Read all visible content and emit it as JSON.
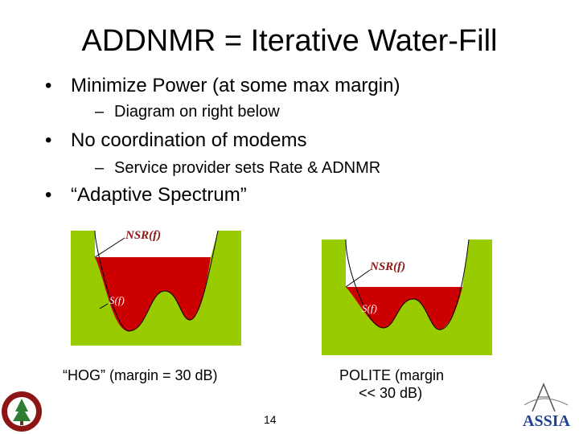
{
  "slide": {
    "title": "ADDNMR = Iterative Water-Fill",
    "page_number": "14"
  },
  "bullets": [
    {
      "text": "Minimize Power (at some max margin)",
      "sub": "Diagram on right below"
    },
    {
      "text": "No coordination of modems",
      "sub": "Service provider sets Rate & ADNMR"
    },
    {
      "text": "“Adaptive Spectrum”"
    }
  ],
  "diagrams": {
    "left": {
      "nsr_label": "NSR(f)",
      "signal_label": "S(f)",
      "caption": "“HOG” (margin = 30 dB)"
    },
    "right": {
      "nsr_label": "NSR(f)",
      "signal_label": "S(f)",
      "caption_line1": "POLITE (margin",
      "caption_line2": "<< 30 dB)"
    }
  },
  "colors": {
    "noise_fill": "#99cc00",
    "water_fill": "#cc0000",
    "stanford_red": "#8c1515",
    "assia_blue": "#1f3f8f"
  },
  "logos": {
    "left": "stanford-seal",
    "right": "ASSIA"
  }
}
